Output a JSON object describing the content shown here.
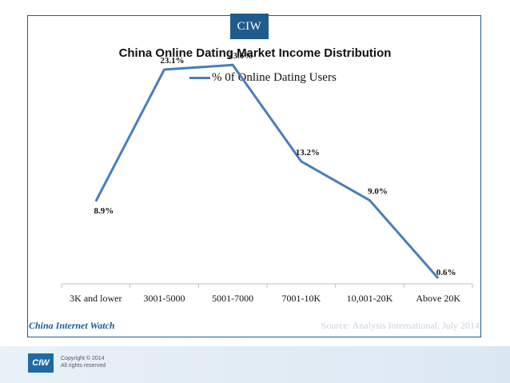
{
  "badge": "CIW",
  "brand": "China Internet Watch",
  "source": "Source: Analysis International, July 2014",
  "copyright": [
    "Copyright © 2014",
    "All rights reserved"
  ],
  "footer_logo": "CIW",
  "colors": {
    "line": "#4a7ebb",
    "accent": "#1f5b8c"
  },
  "chart_data": {
    "type": "line",
    "title": "China Online Dating Market Income Distribution",
    "categories": [
      "3K and lower",
      "3001-5000",
      "5001-7000",
      "7001-10K",
      "10,001-20K",
      "Above 20K"
    ],
    "series": [
      {
        "name": "% 0f Online Dating Users",
        "values": [
          8.9,
          23.1,
          23.6,
          13.2,
          9.0,
          0.6
        ],
        "labels": [
          "8.9%",
          "23.1%",
          "23.6%",
          "13.2%",
          "9.0%",
          "0.6%"
        ]
      }
    ],
    "ylim": [
      0,
      25
    ],
    "legend": "top",
    "grid": false
  }
}
